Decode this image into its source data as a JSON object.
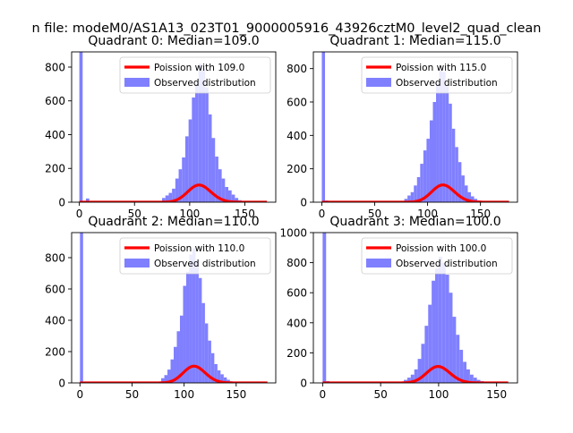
{
  "figure": {
    "suptitle": "n file: modeM0/AS1A13_023T01_9000005916_43926cztM0_level2_quad_clean"
  },
  "colors": {
    "poisson_line": "#ff0000",
    "observed_bars": "#8080ff",
    "axis": "#000000",
    "background": "#ffffff"
  },
  "chart_data": [
    {
      "type": "bar",
      "title": "Quadrant 0: Median=109.0",
      "median": 109.0,
      "xlim": [
        -7,
        178
      ],
      "ylim": [
        0,
        890
      ],
      "xticks": [
        0,
        50,
        100,
        150
      ],
      "yticks": [
        0,
        200,
        400,
        600,
        800
      ],
      "legend_position": "top-right",
      "series": [
        {
          "name": "Poission with 109.0",
          "kind": "line",
          "color": "#ff0000"
        },
        {
          "name": "Observed distribution",
          "kind": "histogram",
          "color": "#8080ff",
          "bins": [
            [
              0,
              3,
              890
            ],
            [
              3,
              6,
              5
            ],
            [
              6,
              9,
              22
            ],
            [
              75,
              78,
              25
            ],
            [
              78,
              81,
              40
            ],
            [
              81,
              84,
              55
            ],
            [
              84,
              87,
              80
            ],
            [
              87,
              90,
              140
            ],
            [
              90,
              93,
              195
            ],
            [
              93,
              96,
              265
            ],
            [
              96,
              99,
              390
            ],
            [
              99,
              102,
              490
            ],
            [
              102,
              105,
              620
            ],
            [
              105,
              108,
              700
            ],
            [
              108,
              111,
              820
            ],
            [
              111,
              114,
              790
            ],
            [
              114,
              117,
              680
            ],
            [
              117,
              120,
              520
            ],
            [
              120,
              123,
              380
            ],
            [
              123,
              126,
              270
            ],
            [
              126,
              129,
              195
            ],
            [
              129,
              132,
              140
            ],
            [
              132,
              135,
              90
            ],
            [
              135,
              138,
              70
            ],
            [
              138,
              141,
              45
            ],
            [
              141,
              144,
              25
            ],
            [
              144,
              147,
              12
            ],
            [
              147,
              150,
              6
            ]
          ]
        }
      ]
    },
    {
      "type": "bar",
      "title": "Quadrant 1: Median=115.0",
      "median": 115.0,
      "xlim": [
        -8,
        185
      ],
      "ylim": [
        0,
        900
      ],
      "xticks": [
        0,
        50,
        100,
        150
      ],
      "yticks": [
        0,
        200,
        400,
        600,
        800
      ],
      "legend_position": "top-right",
      "series": [
        {
          "name": "Poission with 115.0",
          "kind": "line",
          "color": "#ff0000"
        },
        {
          "name": "Observed distribution",
          "kind": "histogram",
          "color": "#8080ff",
          "bins": [
            [
              0,
              3,
              900
            ],
            [
              3,
              6,
              10
            ],
            [
              6,
              9,
              5
            ],
            [
              78,
              81,
              20
            ],
            [
              81,
              84,
              40
            ],
            [
              84,
              87,
              60
            ],
            [
              87,
              90,
              100
            ],
            [
              90,
              93,
              150
            ],
            [
              93,
              96,
              230
            ],
            [
              96,
              99,
              310
            ],
            [
              99,
              102,
              380
            ],
            [
              102,
              105,
              490
            ],
            [
              105,
              108,
              600
            ],
            [
              108,
              111,
              710
            ],
            [
              111,
              114,
              800
            ],
            [
              114,
              117,
              780
            ],
            [
              117,
              120,
              700
            ],
            [
              120,
              123,
              590
            ],
            [
              123,
              126,
              440
            ],
            [
              126,
              129,
              330
            ],
            [
              129,
              132,
              240
            ],
            [
              132,
              135,
              160
            ],
            [
              135,
              138,
              100
            ],
            [
              138,
              141,
              60
            ],
            [
              141,
              144,
              35
            ],
            [
              144,
              147,
              20
            ],
            [
              147,
              150,
              10
            ]
          ]
        }
      ]
    },
    {
      "type": "bar",
      "title": "Quadrant 2: Median=110.0",
      "median": 110.0,
      "xlim": [
        -8,
        188
      ],
      "ylim": [
        0,
        960
      ],
      "xticks": [
        0,
        50,
        100,
        150
      ],
      "yticks": [
        0,
        200,
        400,
        600,
        800
      ],
      "legend_position": "top-right",
      "series": [
        {
          "name": "Poission with 110.0",
          "kind": "line",
          "color": "#ff0000"
        },
        {
          "name": "Observed distribution",
          "kind": "histogram",
          "color": "#8080ff",
          "bins": [
            [
              0,
              3,
              960
            ],
            [
              3,
              6,
              8
            ],
            [
              78,
              81,
              30
            ],
            [
              81,
              84,
              50
            ],
            [
              84,
              87,
              85
            ],
            [
              87,
              90,
              150
            ],
            [
              90,
              93,
              230
            ],
            [
              93,
              96,
              330
            ],
            [
              96,
              99,
              430
            ],
            [
              99,
              102,
              620
            ],
            [
              102,
              105,
              710
            ],
            [
              105,
              108,
              820
            ],
            [
              108,
              111,
              860
            ],
            [
              111,
              114,
              780
            ],
            [
              114,
              117,
              670
            ],
            [
              117,
              120,
              510
            ],
            [
              120,
              123,
              380
            ],
            [
              123,
              126,
              270
            ],
            [
              126,
              129,
              190
            ],
            [
              129,
              132,
              120
            ],
            [
              132,
              135,
              80
            ],
            [
              135,
              138,
              55
            ],
            [
              138,
              141,
              35
            ],
            [
              141,
              144,
              20
            ],
            [
              144,
              147,
              10
            ],
            [
              147,
              150,
              6
            ]
          ]
        }
      ]
    },
    {
      "type": "bar",
      "title": "Quadrant 3: Median=100.0",
      "median": 100.0,
      "xlim": [
        -8,
        168
      ],
      "ylim": [
        0,
        1000
      ],
      "xticks": [
        0,
        50,
        100,
        150
      ],
      "yticks": [
        0,
        200,
        400,
        600,
        800,
        1000
      ],
      "legend_position": "top-right",
      "series": [
        {
          "name": "Poission with 100.0",
          "kind": "line",
          "color": "#ff0000"
        },
        {
          "name": "Observed distribution",
          "kind": "histogram",
          "color": "#8080ff",
          "bins": [
            [
              0,
              3,
              1000
            ],
            [
              3,
              6,
              12
            ],
            [
              6,
              9,
              8
            ],
            [
              70,
              73,
              20
            ],
            [
              73,
              76,
              35
            ],
            [
              76,
              79,
              55
            ],
            [
              79,
              82,
              90
            ],
            [
              82,
              85,
              160
            ],
            [
              85,
              88,
              260
            ],
            [
              88,
              91,
              380
            ],
            [
              91,
              94,
              520
            ],
            [
              94,
              97,
              680
            ],
            [
              97,
              100,
              760
            ],
            [
              100,
              103,
              840
            ],
            [
              103,
              106,
              800
            ],
            [
              106,
              109,
              720
            ],
            [
              109,
              112,
              600
            ],
            [
              112,
              115,
              440
            ],
            [
              115,
              118,
              320
            ],
            [
              118,
              121,
              220
            ],
            [
              121,
              124,
              140
            ],
            [
              124,
              127,
              90
            ],
            [
              127,
              130,
              55
            ],
            [
              130,
              133,
              35
            ],
            [
              133,
              136,
              20
            ],
            [
              136,
              139,
              12
            ],
            [
              139,
              142,
              6
            ]
          ]
        }
      ]
    }
  ]
}
